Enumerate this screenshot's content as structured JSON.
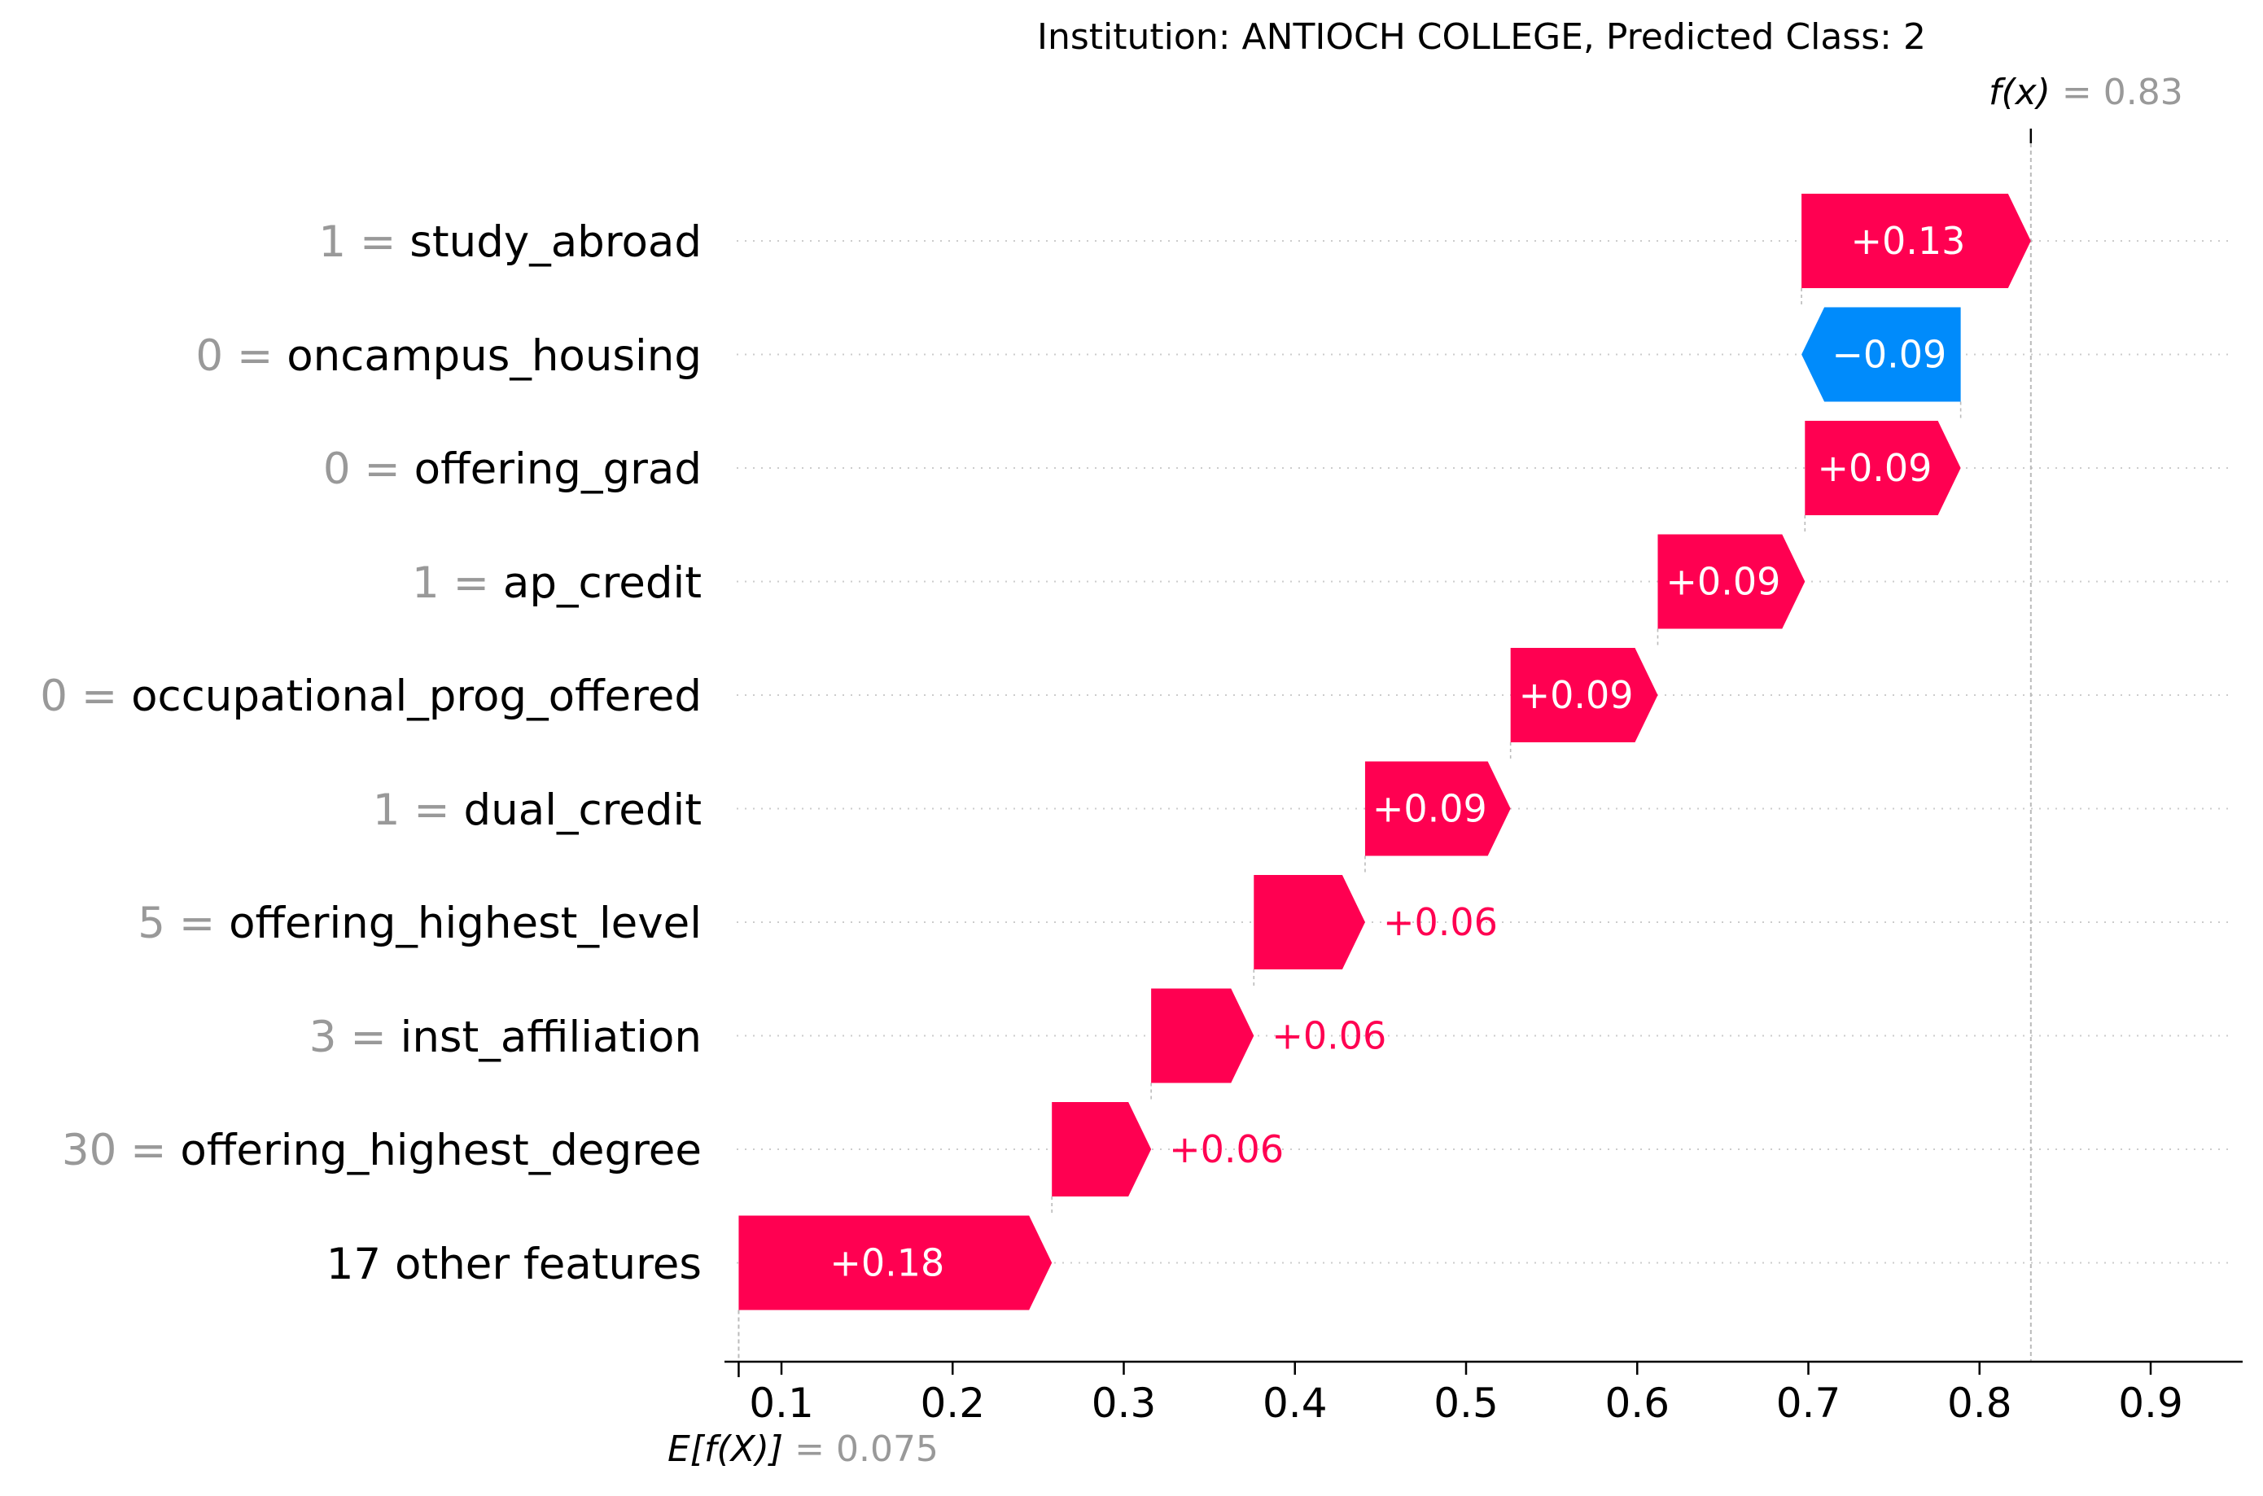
{
  "chart_data": {
    "type": "waterfall",
    "title": "Institution: ANTIOCH COLLEGE, Predicted Class: 2",
    "final_label": "f(x)",
    "final_value_text": "= 0.83",
    "final_value": 0.83,
    "base_label": "E[f(X)]",
    "base_value_text": "= 0.075",
    "base_value": 0.075,
    "xlim": [
      0.07,
      0.955
    ],
    "xticks": [
      "0.1",
      "0.2",
      "0.3",
      "0.4",
      "0.5",
      "0.6",
      "0.7",
      "0.8",
      "0.9"
    ],
    "xtick_values": [
      0.1,
      0.2,
      0.3,
      0.4,
      0.5,
      0.6,
      0.7,
      0.8,
      0.9
    ],
    "features": [
      {
        "value": "1",
        "name": "study_abroad",
        "contribution": 0.13,
        "label": "+0.13",
        "start": 0.696,
        "end": 0.83
      },
      {
        "value": "0",
        "name": "oncampus_housing",
        "contribution": -0.09,
        "label": "−0.09",
        "start": 0.789,
        "end": 0.696
      },
      {
        "value": "0",
        "name": "offering_grad",
        "contribution": 0.09,
        "label": "+0.09",
        "start": 0.698,
        "end": 0.789
      },
      {
        "value": "1",
        "name": "ap_credit",
        "contribution": 0.09,
        "label": "+0.09",
        "start": 0.612,
        "end": 0.698
      },
      {
        "value": "0",
        "name": "occupational_prog_offered",
        "contribution": 0.09,
        "label": "+0.09",
        "start": 0.526,
        "end": 0.612
      },
      {
        "value": "1",
        "name": "dual_credit",
        "contribution": 0.09,
        "label": "+0.09",
        "start": 0.441,
        "end": 0.526
      },
      {
        "value": "5",
        "name": "offering_highest_level",
        "contribution": 0.06,
        "label": "+0.06",
        "start": 0.376,
        "end": 0.441
      },
      {
        "value": "3",
        "name": "inst_affiliation",
        "contribution": 0.06,
        "label": "+0.06",
        "start": 0.316,
        "end": 0.376
      },
      {
        "value": "30",
        "name": "offering_highest_degree",
        "contribution": 0.06,
        "label": "+0.06",
        "start": 0.258,
        "end": 0.316
      },
      {
        "value": "",
        "name": "17 other features",
        "contribution": 0.18,
        "label": "+0.18",
        "start": 0.075,
        "end": 0.258
      }
    ],
    "colors": {
      "positive": "#ff0051",
      "negative": "#008bfb",
      "grid": "#cccccc",
      "value_text": "#999999"
    }
  }
}
